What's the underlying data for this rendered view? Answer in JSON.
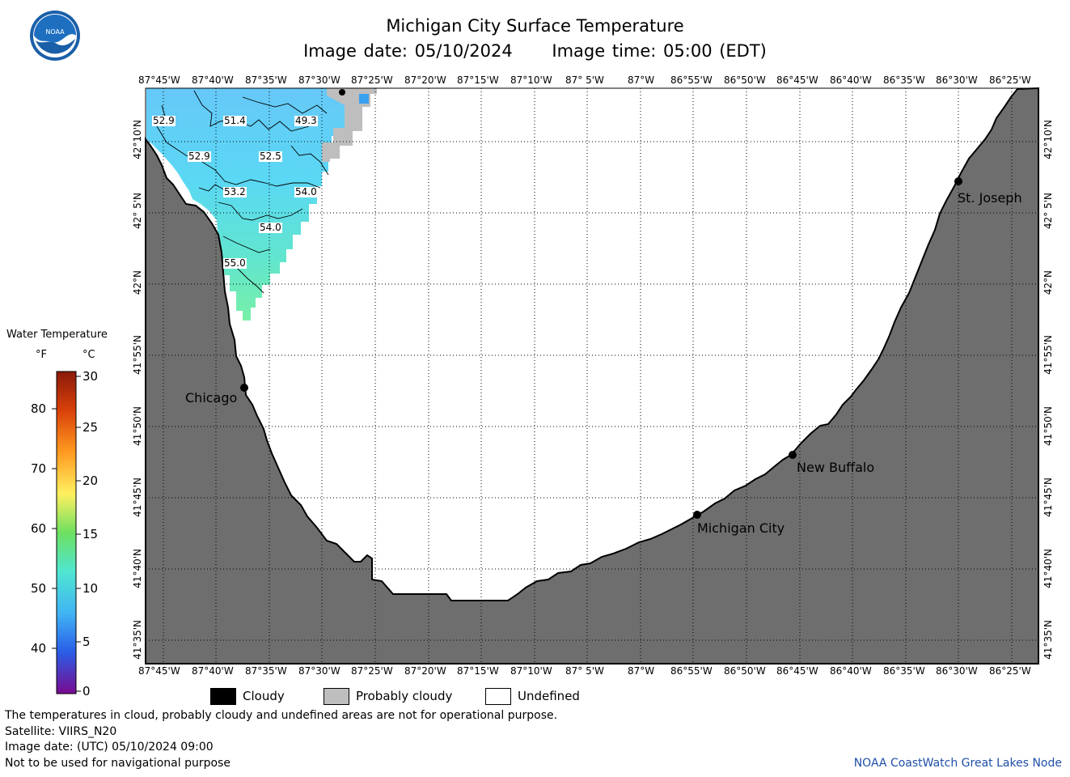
{
  "header": {
    "title": "Michigan City Surface Temperature",
    "image_date": "Image date: 05/10/2024",
    "image_time": "Image time: 05:00 (EDT)"
  },
  "logo": {
    "text": "NOAA",
    "icon": "noaa-logo-icon"
  },
  "map": {
    "lon_labels": [
      "87°45'W",
      "87°40'W",
      "87°35'W",
      "87°30'W",
      "87°25'W",
      "87°20'W",
      "87°15'W",
      "87°10'W",
      "87° 5'W",
      "87°W",
      "86°55'W",
      "86°50'W",
      "86°45'W",
      "86°40'W",
      "86°35'W",
      "86°30'W",
      "86°25'W"
    ],
    "lat_labels": [
      "42°10'N",
      "42° 5'N",
      "42°N",
      "41°55'N",
      "41°50'N",
      "41°45'N",
      "41°40'N",
      "41°35'N"
    ],
    "cities": [
      {
        "name": "St. Joseph"
      },
      {
        "name": "Chicago"
      },
      {
        "name": "New Buffalo"
      },
      {
        "name": "Michigan City"
      }
    ],
    "isotherm_labels": [
      "52.9",
      "51.4",
      "49.3",
      "52.9",
      "52.5",
      "53.2",
      "54.0",
      "54.0",
      "55.0"
    ],
    "colors": {
      "land": "#6e6e6e",
      "undefined": "#ffffff",
      "probably_cloudy": "#bebebe",
      "cloudy": "#000000"
    }
  },
  "legend": {
    "title": "Water Temperature",
    "unit_f": "°F",
    "unit_c": "°C",
    "ticks_f": [
      "80",
      "70",
      "60",
      "50",
      "40"
    ],
    "ticks_c": [
      "30",
      "25",
      "20",
      "15",
      "10",
      "5",
      "0"
    ]
  },
  "key": {
    "cloudy": "Cloudy",
    "probably_cloudy": "Probably cloudy",
    "undefined": "Undefined"
  },
  "footer": {
    "line1": "The temperatures in cloud, probably cloudy and undefined areas are not for operational purpose.",
    "line2": "Satellite: VIIRS_N20",
    "line3": "Image date: (UTC) 05/10/2024  09:00",
    "line4": "Not to be used for navigational purpose",
    "credit": "NOAA CoastWatch Great Lakes Node"
  }
}
